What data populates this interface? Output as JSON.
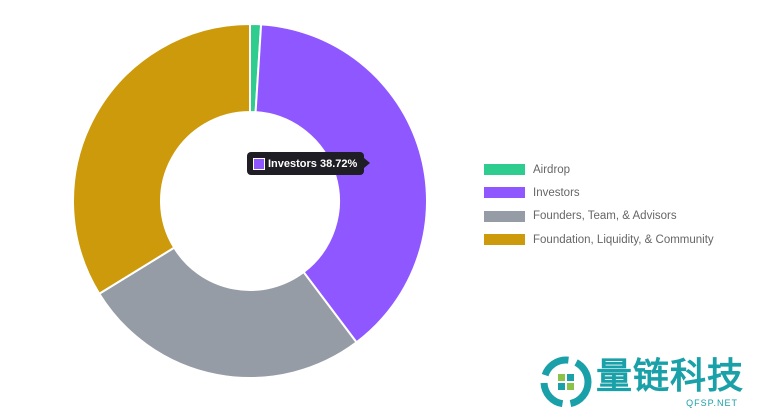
{
  "chart_data": {
    "type": "pie",
    "variant": "doughnut",
    "categories": [
      "Airdrop",
      "Investors",
      "Founders, Team, & Advisors",
      "Foundation, Liquidity, & Community"
    ],
    "values": [
      1.0,
      38.72,
      26.5,
      33.78
    ],
    "unit": "%",
    "colors": [
      "#2ecc8f",
      "#8f57ff",
      "#959ca6",
      "#cc9a0a"
    ],
    "legend_position": "right",
    "tooltip": {
      "label": "Investors 38.72%",
      "color": "#8f57ff"
    }
  },
  "watermark": {
    "text": "量链科技",
    "subtext": "QFSP.NET"
  }
}
